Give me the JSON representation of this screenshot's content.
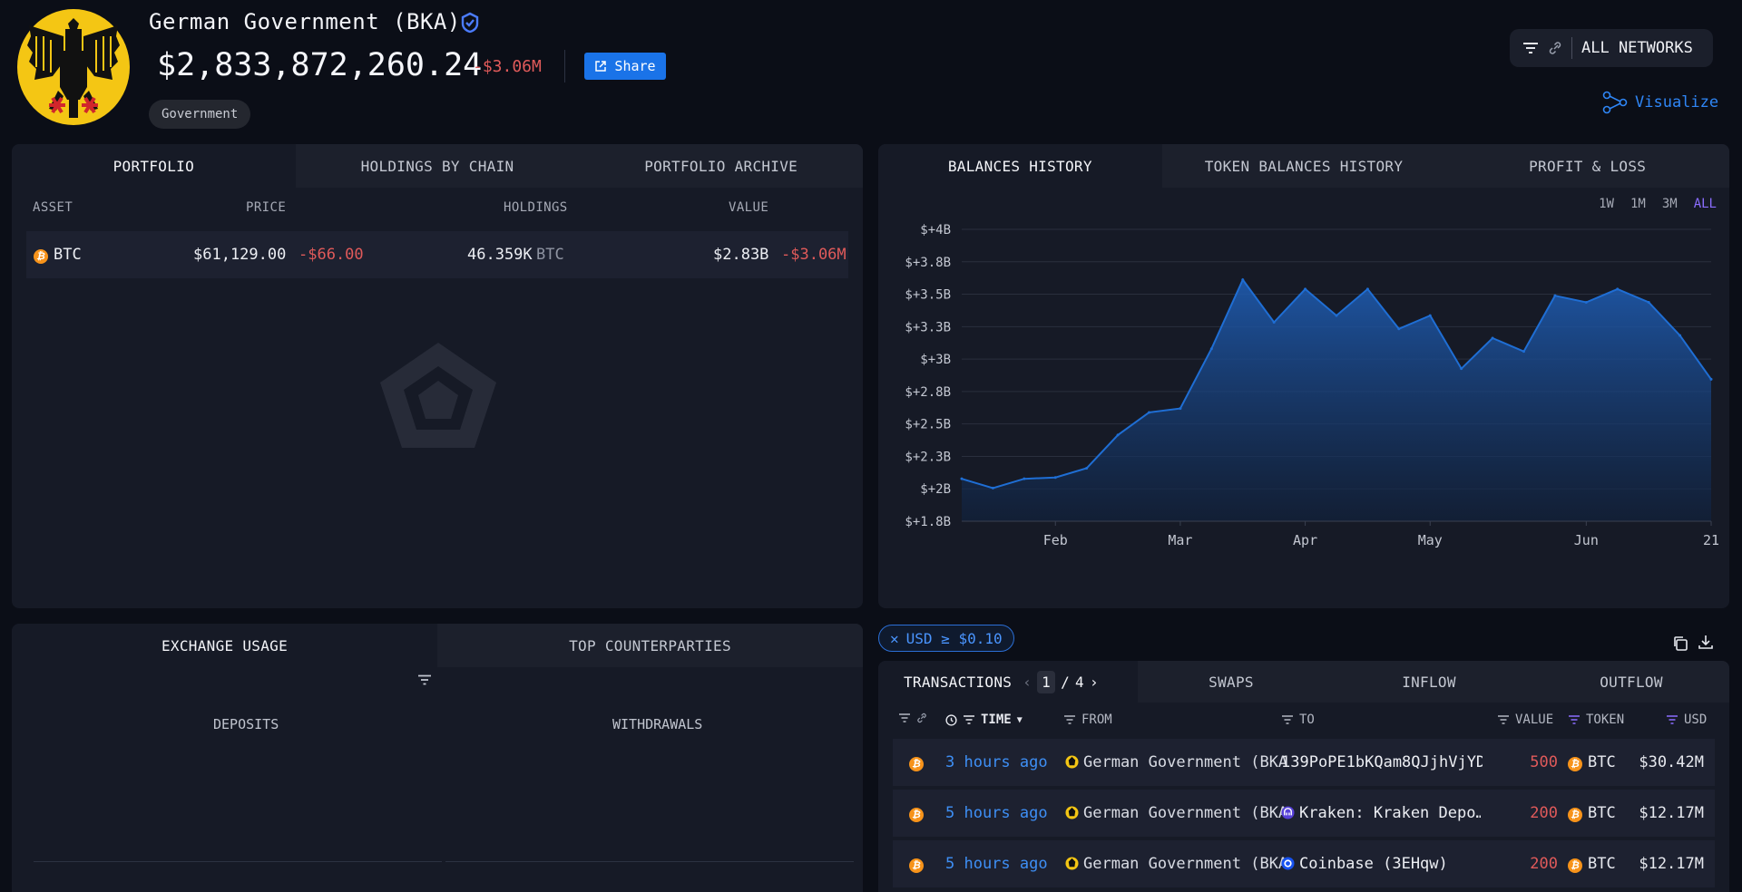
{
  "entity": {
    "name": "German Government (BKA)",
    "balance": "$2,833,872,260.24",
    "change": "-$3.06M",
    "share_label": "Share",
    "tag": "Government"
  },
  "header": {
    "networks_label": "ALL NETWORKS",
    "visualize_label": "Visualize"
  },
  "portfolio": {
    "tabs": [
      "PORTFOLIO",
      "HOLDINGS BY CHAIN",
      "PORTFOLIO ARCHIVE"
    ],
    "columns": [
      "ASSET",
      "PRICE",
      "HOLDINGS",
      "VALUE"
    ],
    "rows": [
      {
        "asset": "BTC",
        "price": "$61,129.00",
        "price_change": "-$66.00",
        "holdings": "46.359K",
        "holdings_unit": "BTC",
        "value": "$2.83B",
        "value_change": "-$3.06M"
      }
    ]
  },
  "balances": {
    "tabs": [
      "BALANCES HISTORY",
      "TOKEN BALANCES HISTORY",
      "PROFIT & LOSS"
    ],
    "ranges": [
      "1W",
      "1M",
      "3M",
      "ALL"
    ],
    "active_range": "ALL"
  },
  "chart_data": {
    "type": "area",
    "title": "",
    "xlabel": "",
    "ylabel": "",
    "y_tick_labels": [
      "$+4B",
      "$+3.8B",
      "$+3.5B",
      "$+3.3B",
      "$+3B",
      "$+2.8B",
      "$+2.5B",
      "$+2.3B",
      "$+2B",
      "$+1.8B"
    ],
    "x_tick_labels": [
      "Feb",
      "Mar",
      "Apr",
      "May",
      "Jun",
      "21"
    ],
    "ylim": [
      1.8,
      4.0
    ],
    "y_unit": "billion USD",
    "grid": true,
    "color": "#1f6ed4",
    "x": [
      "Jan 12",
      "Jan 19",
      "Jan 26",
      "Feb 2",
      "Feb 9",
      "Feb 16",
      "Feb 23",
      "Mar 1",
      "Mar 8",
      "Mar 14",
      "Mar 21",
      "Mar 28",
      "Apr 4",
      "Apr 11",
      "Apr 18",
      "Apr 25",
      "May 2",
      "May 9",
      "May 16",
      "May 23",
      "May 30",
      "Jun 6",
      "Jun 13",
      "Jun 18",
      "Jun 21"
    ],
    "values": [
      2.12,
      2.05,
      2.12,
      2.13,
      2.2,
      2.45,
      2.62,
      2.65,
      3.1,
      3.62,
      3.3,
      3.55,
      3.35,
      3.55,
      3.25,
      3.35,
      2.95,
      3.18,
      3.08,
      3.5,
      3.45,
      3.55,
      3.45,
      3.2,
      2.87
    ]
  },
  "exchange": {
    "tabs": [
      "EXCHANGE USAGE",
      "TOP COUNTERPARTIES"
    ],
    "deposits_label": "DEPOSITS",
    "withdrawals_label": "WITHDRAWALS"
  },
  "filter_chip": "USD ≥ $0.10",
  "transactions": {
    "tabs": [
      "TRANSACTIONS",
      "SWAPS",
      "INFLOW",
      "OUTFLOW"
    ],
    "page_current": "1",
    "page_total": "4",
    "page_sep": "/",
    "columns": [
      "TIME",
      "FROM",
      "TO",
      "VALUE",
      "TOKEN",
      "USD"
    ],
    "rows": [
      {
        "time": "3 hours ago",
        "from": "German Government (BKA",
        "to": "139PoPE1bKQam8QJjhVjYD…",
        "value": "500",
        "token": "BTC",
        "usd": "$30.42M"
      },
      {
        "time": "5 hours ago",
        "from": "German Government (BKA",
        "to": "Kraken: Kraken Depo…",
        "value": "200",
        "token": "BTC",
        "usd": "$12.17M"
      },
      {
        "time": "5 hours ago",
        "from": "German Government (BKA",
        "to": "Coinbase (3EHqw)",
        "value": "200",
        "token": "BTC",
        "usd": "$12.17M"
      }
    ]
  }
}
